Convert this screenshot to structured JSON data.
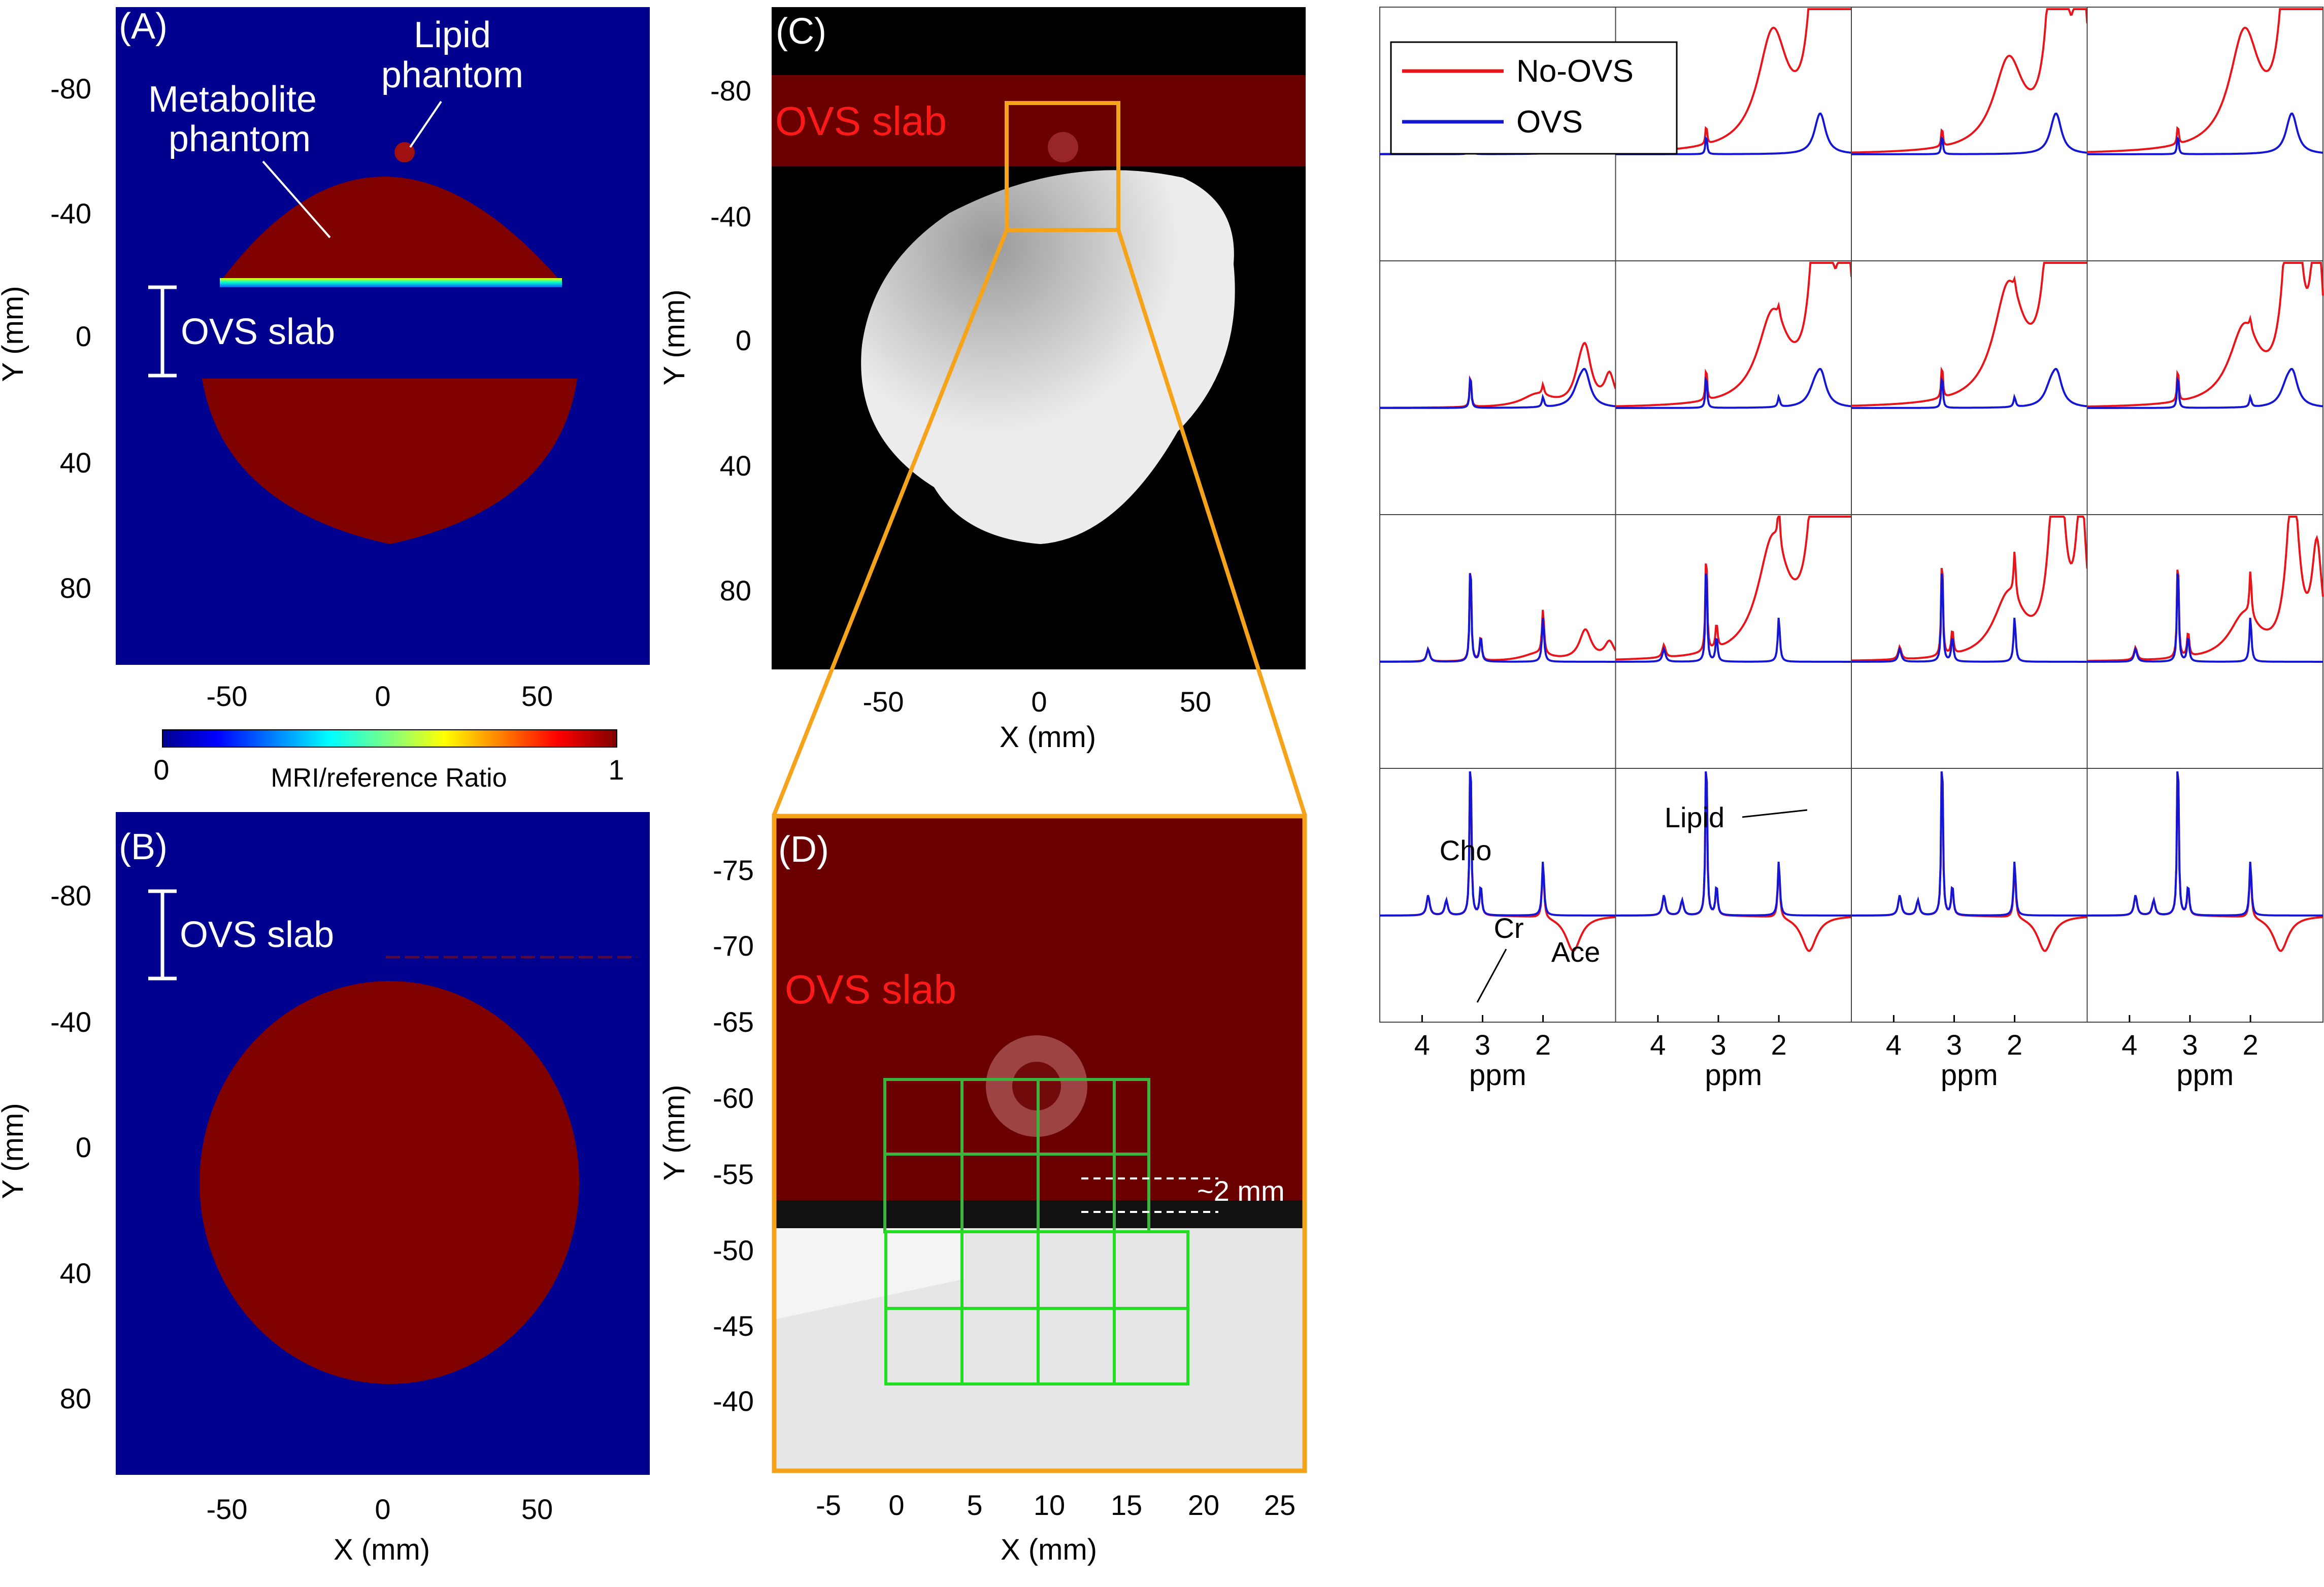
{
  "panels": {
    "A": {
      "label": "(A)",
      "ylabel": "Y (mm)",
      "yticks": [
        "-80",
        "-40",
        "0",
        "40",
        "80"
      ],
      "xticks": [
        "-50",
        "0",
        "50"
      ],
      "ovs_label": "OVS slab",
      "metabolite_label_1": "Metabolite",
      "metabolite_label_2": "phantom",
      "lipid_label_1": "Lipid",
      "lipid_label_2": "phantom"
    },
    "colorbar": {
      "min": "0",
      "max": "1",
      "label": "MRI/reference Ratio"
    },
    "B": {
      "label": "(B)",
      "ylabel": "Y (mm)",
      "xlabel": "X (mm)",
      "yticks": [
        "-80",
        "-40",
        "0",
        "40",
        "80"
      ],
      "xticks": [
        "-50",
        "0",
        "50"
      ],
      "ovs_label": "OVS slab"
    },
    "C": {
      "label": "(C)",
      "ylabel": "Y (mm)",
      "xlabel": "X (mm)",
      "yticks": [
        "-80",
        "-40",
        "0",
        "40",
        "80"
      ],
      "xticks": [
        "-50",
        "0",
        "50"
      ],
      "ovs_label": "OVS slab"
    },
    "D": {
      "label": "(D)",
      "ylabel": "Y (mm)",
      "xlabel": "X (mm)",
      "yticks": [
        "-75",
        "-70",
        "-65",
        "-60",
        "-55",
        "-50",
        "-45",
        "-40"
      ],
      "xticks": [
        "-5",
        "0",
        "5",
        "10",
        "15",
        "20",
        "25"
      ],
      "ovs_label": "OVS slab",
      "distance_label": "~2 mm"
    }
  },
  "spectra": {
    "legend": [
      {
        "name": "No-OVS",
        "color": "#e8141a"
      },
      {
        "name": "OVS",
        "color": "#1515d4"
      }
    ],
    "xlabel": "ppm",
    "xticks": [
      "4",
      "3",
      "2"
    ],
    "annotations": {
      "cho": "Cho",
      "cr": "Cr",
      "ace": "Ace",
      "lipid": "Lipid"
    }
  },
  "colors": {
    "jet_blue": "#00008f",
    "jet_darkred": "#800000",
    "ovs_red": "#6a0000",
    "zoom_orange": "#f5a31a",
    "grid_green": "#22dd22",
    "overlay_text_red": "#ff1a1a"
  }
}
